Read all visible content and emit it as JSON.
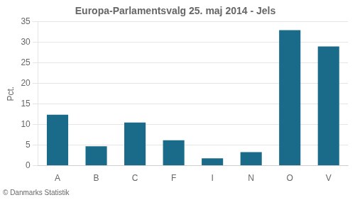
{
  "chart_data": {
    "type": "bar",
    "title": "Europa-Parlamentsvalg 25. maj 2014 - Jels",
    "categories": [
      "A",
      "B",
      "C",
      "F",
      "I",
      "N",
      "O",
      "V"
    ],
    "values": [
      12.4,
      4.7,
      10.5,
      6.2,
      1.8,
      3.3,
      33.0,
      29.0
    ],
    "color": "#1a6b8a",
    "ylabel": "Pct.",
    "ylim": [
      0,
      35
    ],
    "yticks": [
      0,
      5,
      10,
      15,
      20,
      25,
      30,
      35
    ],
    "grid": true,
    "annotations": [
      "© Danmarks Statistik"
    ]
  }
}
